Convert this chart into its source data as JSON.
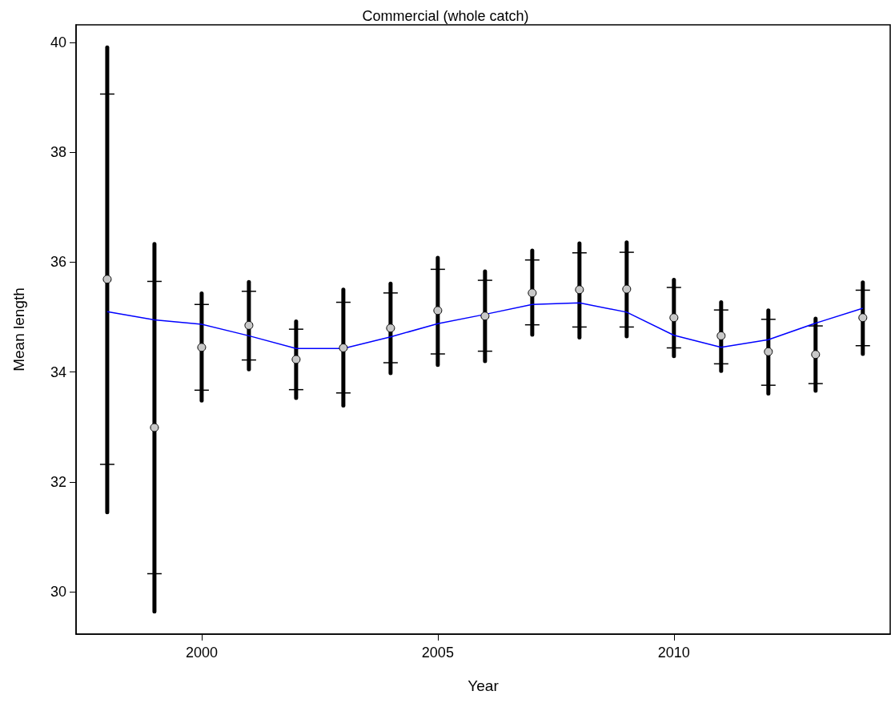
{
  "chart_data": {
    "type": "scatter",
    "title": "Commercial (whole catch)",
    "xlabel": "Year",
    "ylabel": "Mean length",
    "x": [
      1998,
      1999,
      2000,
      2001,
      2002,
      2003,
      2004,
      2005,
      2006,
      2007,
      2008,
      2009,
      2010,
      2011,
      2012,
      2013,
      2014
    ],
    "series": [
      {
        "marker": "circle",
        "color": "#c8c8c8",
        "values": [
          35.69,
          32.99,
          34.45,
          34.85,
          34.23,
          34.44,
          34.8,
          35.12,
          35.02,
          35.44,
          35.5,
          35.51,
          34.99,
          34.66,
          34.37,
          34.32,
          34.99
        ],
        "errors": [
          [
            31.45,
            39.91
          ],
          [
            29.64,
            36.33
          ],
          [
            33.48,
            35.43
          ],
          [
            34.05,
            35.64
          ],
          [
            33.53,
            34.92
          ],
          [
            33.39,
            35.5
          ],
          [
            33.98,
            35.61
          ],
          [
            34.13,
            36.08
          ],
          [
            34.2,
            35.83
          ],
          [
            34.68,
            36.21
          ],
          [
            34.63,
            36.34
          ],
          [
            34.65,
            36.36
          ],
          [
            34.29,
            35.68
          ],
          [
            34.02,
            35.27
          ],
          [
            33.61,
            35.12
          ],
          [
            33.66,
            34.97
          ],
          [
            34.33,
            35.63
          ]
        ]
      },
      {
        "marker": "circle",
        "color": "#000000",
        "values": [
          35.69,
          32.99,
          34.45,
          34.85,
          34.23,
          34.44,
          34.8,
          35.12,
          35.02,
          35.44,
          35.5,
          35.51,
          34.99,
          34.66,
          34.37,
          34.32,
          34.99
        ],
        "errors": [
          [
            32.32,
            39.06
          ],
          [
            30.33,
            35.65
          ],
          [
            33.67,
            35.23
          ],
          [
            34.22,
            35.47
          ],
          [
            33.68,
            34.78
          ],
          [
            33.62,
            35.27
          ],
          [
            34.17,
            35.44
          ],
          [
            34.33,
            35.87
          ],
          [
            34.38,
            35.67
          ],
          [
            34.86,
            36.04
          ],
          [
            34.82,
            36.17
          ],
          [
            34.82,
            36.18
          ],
          [
            34.44,
            35.54
          ],
          [
            34.15,
            35.13
          ],
          [
            33.76,
            34.96
          ],
          [
            33.79,
            34.84
          ],
          [
            34.48,
            35.49
          ]
        ]
      },
      {
        "type": "line",
        "marker": "none",
        "color": "#0000ff",
        "values": [
          35.1,
          34.95,
          34.87,
          34.66,
          34.43,
          34.43,
          34.64,
          34.88,
          35.05,
          35.23,
          35.26,
          35.09,
          34.67,
          34.45,
          34.59,
          34.89,
          35.16
        ]
      }
    ],
    "xlim": [
      1997.34,
      2014.58
    ],
    "xticks": [
      2000,
      2005,
      2010
    ],
    "ylim": [
      29.23,
      40.32
    ],
    "yticks": [
      30,
      32,
      34,
      36,
      38,
      40
    ],
    "grid": false
  }
}
